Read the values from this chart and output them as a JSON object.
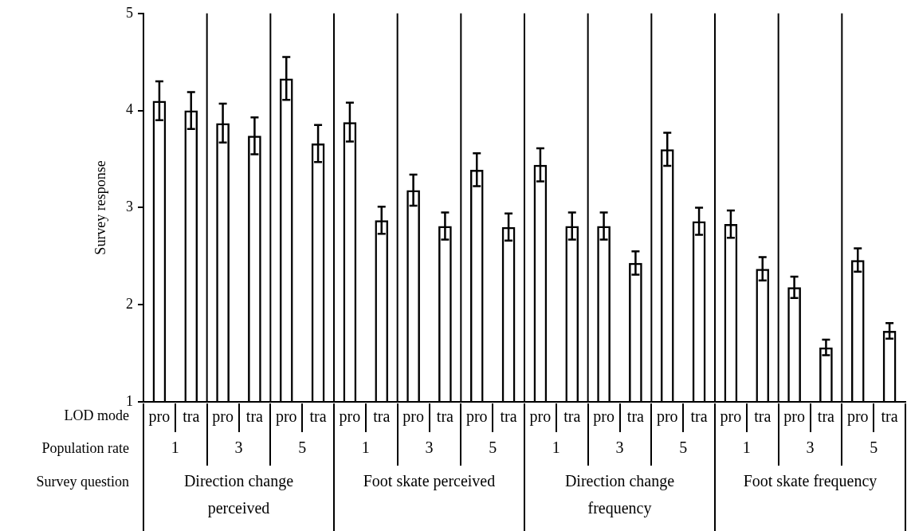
{
  "chart_data": {
    "type": "bar",
    "ylabel": "Survey response",
    "categories": [
      "pro",
      "tra",
      "pro",
      "tra",
      "pro",
      "tra",
      "pro",
      "tra",
      "pro",
      "tra",
      "pro",
      "tra",
      "pro",
      "tra",
      "pro",
      "tra",
      "pro",
      "tra",
      "pro",
      "tra",
      "pro",
      "tra",
      "pro",
      "tra"
    ],
    "values": [
      4.1,
      4.0,
      3.87,
      3.74,
      4.33,
      3.66,
      3.88,
      2.87,
      3.18,
      2.81,
      3.39,
      2.8,
      3.44,
      2.81,
      2.81,
      2.43,
      3.6,
      2.86,
      2.83,
      2.37,
      2.18,
      1.56,
      2.46,
      1.73
    ],
    "errors": [
      0.2,
      0.19,
      0.2,
      0.19,
      0.22,
      0.19,
      0.2,
      0.14,
      0.16,
      0.14,
      0.17,
      0.14,
      0.17,
      0.14,
      0.14,
      0.12,
      0.17,
      0.14,
      0.14,
      0.12,
      0.11,
      0.08,
      0.12,
      0.08
    ],
    "color": "#000000",
    "ylim": [
      1,
      5
    ],
    "yticks": [
      1,
      2,
      3,
      4,
      5
    ],
    "grid": false,
    "legend": false,
    "annotations": [
      "LOD mode",
      "Population rate",
      "Survey question",
      "1",
      "3",
      "5",
      "1",
      "3",
      "5",
      "1",
      "3",
      "5",
      "1",
      "3",
      "5",
      "Direction change perceived",
      "Foot skate perceived",
      "Direction change frequency",
      "Foot skate frequency"
    ]
  }
}
